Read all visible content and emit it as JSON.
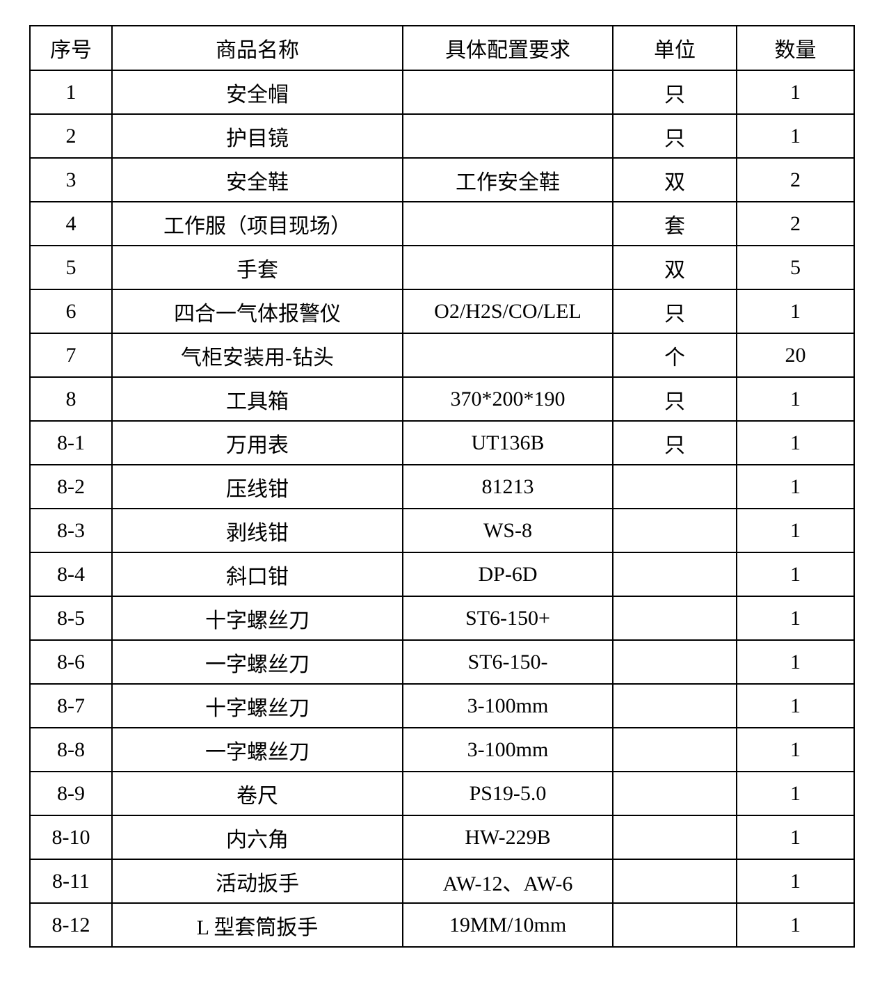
{
  "table": {
    "columns": [
      "序号",
      "商品名称",
      "具体配置要求",
      "单位",
      "数量"
    ],
    "rows": [
      [
        "1",
        "安全帽",
        "",
        "只",
        "1"
      ],
      [
        "2",
        "护目镜",
        "",
        "只",
        "1"
      ],
      [
        "3",
        "安全鞋",
        "工作安全鞋",
        "双",
        "2"
      ],
      [
        "4",
        "工作服（项目现场）",
        "",
        "套",
        "2"
      ],
      [
        "5",
        "手套",
        "",
        "双",
        "5"
      ],
      [
        "6",
        "四合一气体报警仪",
        "O2/H2S/CO/LEL",
        "只",
        "1"
      ],
      [
        "7",
        "气柜安装用-钻头",
        "",
        "个",
        "20"
      ],
      [
        "8",
        "工具箱",
        "370*200*190",
        "只",
        "1"
      ],
      [
        "8-1",
        "万用表",
        "UT136B",
        "只",
        "1"
      ],
      [
        "8-2",
        "压线钳",
        "81213",
        "",
        "1"
      ],
      [
        "8-3",
        "剥线钳",
        "WS-8",
        "",
        "1"
      ],
      [
        "8-4",
        "斜口钳",
        "DP-6D",
        "",
        "1"
      ],
      [
        "8-5",
        "十字螺丝刀",
        "ST6-150+",
        "",
        "1"
      ],
      [
        "8-6",
        "一字螺丝刀",
        "ST6-150-",
        "",
        "1"
      ],
      [
        "8-7",
        "十字螺丝刀",
        "3-100mm",
        "",
        "1"
      ],
      [
        "8-8",
        "一字螺丝刀",
        "3-100mm",
        "",
        "1"
      ],
      [
        "8-9",
        "卷尺",
        "PS19-5.0",
        "",
        "1"
      ],
      [
        "8-10",
        "内六角",
        "HW-229B",
        "",
        "1"
      ],
      [
        "8-11",
        "活动扳手",
        "AW-12、AW-6",
        "",
        "1"
      ],
      [
        "8-12",
        "L 型套筒扳手",
        "19MM/10mm",
        "",
        "1"
      ]
    ]
  }
}
